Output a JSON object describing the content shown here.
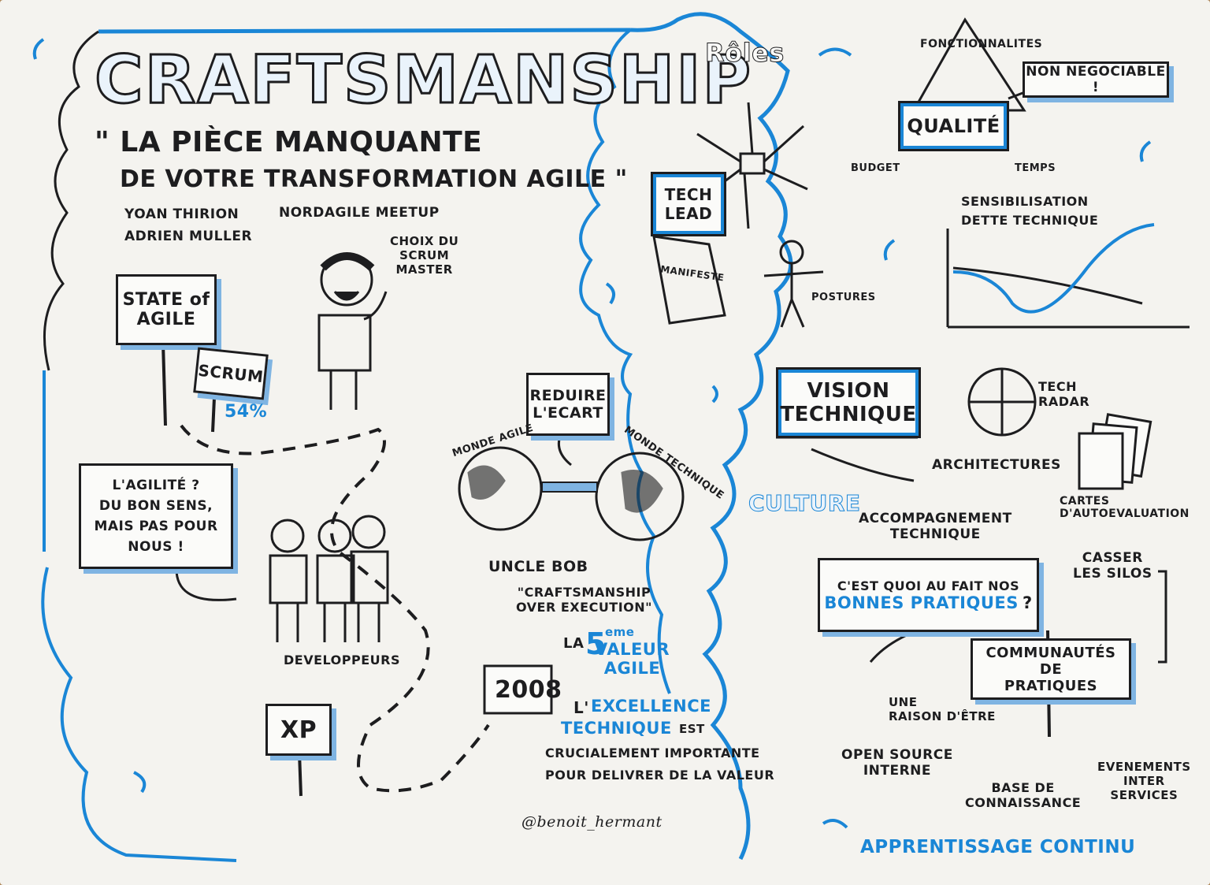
{
  "title": "CRAFTSMANSHIP",
  "subtitle": {
    "line1": "\" LA PIÈCE MANQUANTE",
    "line2": "DE VOTRE TRANSFORMATION AGILE \""
  },
  "speakers": [
    "YOAN THIRION",
    "ADRIEN MULLER"
  ],
  "event": "NORDAGILE MEETUP",
  "left": {
    "state_of_agile": "STATE of AGILE",
    "scrum": "SCRUM",
    "percent": "54%",
    "choix_scrum_master": "CHOIX DU\nSCRUM\nMASTER",
    "bubble": "L'AGILITÉ ?\nDU BON SENS,\nMAIS PAS POUR\nNOUS !",
    "developpeurs": "DEVELOPPEURS",
    "xp": "XP"
  },
  "middle": {
    "reduire_ecart": "REDUIRE\nL'ECART",
    "monde_agile": "MONDE AGILE",
    "monde_technique": "MONDE TECHNIQUE",
    "uncle_bob": "UNCLE BOB",
    "quote": "\"CRAFTSMANSHIP\nOVER EXECUTION\"",
    "la": "LA",
    "five": "5",
    "eme": "eme",
    "valeur": "VALEUR\nAGILE",
    "year": "2008",
    "excellence_prefix": "L'",
    "excellence": "EXCELLENCE",
    "technique": "TECHNIQUE",
    "est": "EST",
    "sentence": "CRUCIALEMENT IMPORTANTE\nPOUR DELIVRER DE LA VALEUR",
    "signature": "@benoit_hermant"
  },
  "right": {
    "roles": "Rôles",
    "tech_lead": "TECH\nLEAD",
    "manifeste": "MANIFESTE",
    "postures": "POSTURES",
    "fonctionnalites": "FONCTIONNALITES",
    "non_negociable": "NON NEGOCIABLE !",
    "qualite": "QUALITÉ",
    "budget": "BUDGET",
    "temps": "TEMPS",
    "sensibilisation": "SENSIBILISATION\nDETTE TECHNIQUE",
    "vision_technique": "VISION\nTECHNIQUE",
    "tech_radar": "TECH\nRADAR",
    "architectures": "ARCHITECTURES",
    "cartes": "CARTES\nD'AUTOEVALUATION",
    "culture": "CULTURE",
    "accompagnement": "ACCOMPAGNEMENT\nTECHNIQUE",
    "question_prefix": "C'EST QUOI AU FAIT NOS",
    "bonnes_pratiques": "BONNES PRATIQUES",
    "question_mark": "?",
    "casser_silos": "CASSER\nLES SILOS",
    "communautes": "COMMUNAUTÉS DE\nPRATIQUES",
    "raison_etre": "UNE\nRAISON D'ÊTRE",
    "open_source": "OPEN SOURCE\nINTERNE",
    "base": "BASE DE\nCONNAISSANCE",
    "evenements": "EVENEMENTS\nINTER\nSERVICES",
    "apprentissage": "APPRENTISSAGE CONTINU"
  },
  "colors": {
    "ink": "#1d1d1f",
    "accent": "#1a86d6",
    "paper": "#f4f3ef",
    "shadow": "#7fb4e2"
  }
}
